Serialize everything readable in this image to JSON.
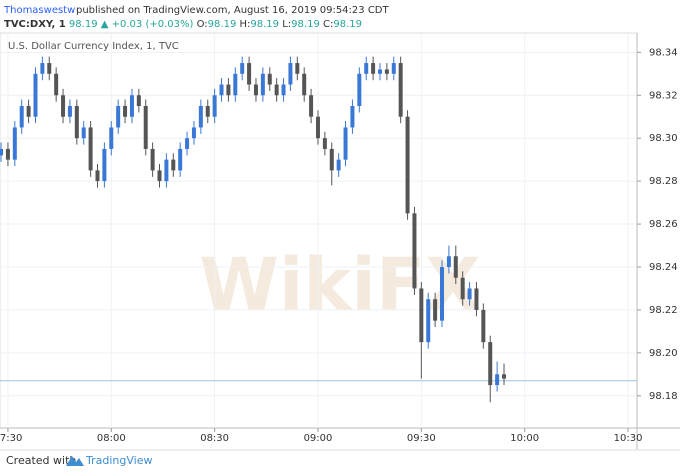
{
  "header": {
    "author": "Thomaswestw",
    "published": "published on TradingView.com, August 16, 2019 09:54:23 CDT",
    "symbol": "TVC:DXY, 1",
    "price": "98.19",
    "change": "▲ +0.03 (+0.03%)",
    "ohlc": [
      {
        "label": "O:",
        "value": "98.19"
      },
      {
        "label": "H:",
        "value": "98.19"
      },
      {
        "label": "L:",
        "value": "98.19"
      },
      {
        "label": "C:",
        "value": "98.19"
      }
    ]
  },
  "watermark": "WikiFX",
  "footer": {
    "text": "Created with",
    "brand": "TradingView"
  },
  "chart_data": {
    "type": "candlestick",
    "title": "U.S. Dollar Currency Index, 1, TVC",
    "up_color": "#3a78d6",
    "down_color": "#555555",
    "price_line": 98.187,
    "price_line_color": "#9fc3df",
    "grid": true,
    "x": [
      448,
      450,
      452,
      454,
      456,
      458,
      460,
      462,
      464,
      466,
      468,
      470,
      472,
      474,
      476,
      478,
      480,
      482,
      484,
      486,
      488,
      490,
      492,
      494,
      496,
      498,
      500,
      502,
      504,
      506,
      508,
      510,
      512,
      514,
      516,
      518,
      520,
      522,
      524,
      526,
      528,
      530,
      532,
      534,
      536,
      538,
      540,
      542,
      544,
      546,
      548,
      550,
      552,
      554,
      556,
      558,
      560,
      562,
      564,
      566,
      568,
      570,
      572,
      574,
      576,
      578,
      580,
      582,
      584,
      586,
      588,
      590,
      592,
      594
    ],
    "open": [
      98.292,
      98.295,
      98.29,
      98.305,
      98.315,
      98.31,
      98.33,
      98.335,
      98.33,
      98.32,
      98.31,
      98.315,
      98.3,
      98.305,
      98.285,
      98.28,
      98.295,
      98.305,
      98.315,
      98.31,
      98.32,
      98.315,
      98.295,
      98.285,
      98.28,
      98.29,
      98.285,
      98.295,
      98.3,
      98.305,
      98.315,
      98.31,
      98.32,
      98.325,
      98.32,
      98.33,
      98.335,
      98.325,
      98.32,
      98.33,
      98.325,
      98.32,
      98.325,
      98.335,
      98.33,
      98.32,
      98.31,
      98.3,
      98.295,
      98.285,
      98.29,
      98.305,
      98.315,
      98.33,
      98.335,
      98.33,
      98.332,
      98.33,
      98.335,
      98.31,
      98.265,
      98.23,
      98.205,
      98.225,
      98.215,
      98.24,
      98.245,
      98.235,
      98.225,
      98.23,
      98.22,
      98.205,
      98.185,
      98.19
    ],
    "high": [
      98.298,
      98.298,
      98.308,
      98.318,
      98.318,
      98.333,
      98.338,
      98.338,
      98.333,
      98.323,
      98.318,
      98.318,
      98.308,
      98.308,
      98.288,
      98.298,
      98.308,
      98.318,
      98.318,
      98.323,
      98.323,
      98.318,
      98.298,
      98.288,
      98.293,
      98.293,
      98.298,
      98.303,
      98.308,
      98.318,
      98.318,
      98.323,
      98.328,
      98.328,
      98.333,
      98.338,
      98.338,
      98.328,
      98.333,
      98.333,
      98.328,
      98.328,
      98.338,
      98.338,
      98.333,
      98.323,
      98.313,
      98.303,
      98.298,
      98.293,
      98.308,
      98.318,
      98.333,
      98.338,
      98.338,
      98.335,
      98.335,
      98.338,
      98.338,
      98.313,
      98.268,
      98.233,
      98.228,
      98.228,
      98.243,
      98.25,
      98.25,
      98.238,
      98.233,
      98.233,
      98.223,
      98.208,
      98.196,
      98.195
    ],
    "low": [
      98.289,
      98.287,
      98.287,
      98.302,
      98.307,
      98.307,
      98.327,
      98.327,
      98.317,
      98.307,
      98.307,
      98.297,
      98.297,
      98.282,
      98.277,
      98.277,
      98.292,
      98.302,
      98.307,
      98.307,
      98.312,
      98.292,
      98.282,
      98.277,
      98.277,
      98.282,
      98.282,
      98.292,
      98.297,
      98.302,
      98.307,
      98.307,
      98.317,
      98.317,
      98.317,
      98.327,
      98.322,
      98.317,
      98.317,
      98.322,
      98.317,
      98.317,
      98.322,
      98.327,
      98.317,
      98.307,
      98.297,
      98.292,
      98.278,
      98.282,
      98.287,
      98.302,
      98.312,
      98.327,
      98.327,
      98.327,
      98.327,
      98.327,
      98.307,
      98.262,
      98.227,
      98.188,
      98.202,
      98.212,
      98.212,
      98.237,
      98.232,
      98.222,
      98.222,
      98.217,
      98.202,
      98.177,
      98.182,
      98.185
    ],
    "close": [
      98.295,
      98.29,
      98.305,
      98.315,
      98.31,
      98.33,
      98.335,
      98.33,
      98.32,
      98.31,
      98.315,
      98.3,
      98.305,
      98.285,
      98.28,
      98.295,
      98.305,
      98.315,
      98.31,
      98.32,
      98.315,
      98.295,
      98.285,
      98.28,
      98.29,
      98.285,
      98.295,
      98.3,
      98.305,
      98.315,
      98.31,
      98.32,
      98.325,
      98.32,
      98.33,
      98.335,
      98.325,
      98.32,
      98.33,
      98.325,
      98.32,
      98.325,
      98.335,
      98.33,
      98.32,
      98.31,
      98.3,
      98.295,
      98.285,
      98.29,
      98.305,
      98.315,
      98.33,
      98.335,
      98.33,
      98.332,
      98.33,
      98.335,
      98.31,
      98.265,
      98.23,
      98.205,
      98.225,
      98.215,
      98.24,
      98.245,
      98.235,
      98.225,
      98.23,
      98.22,
      98.205,
      98.185,
      98.19,
      98.188
    ],
    "xlim": [
      447.7,
      632.6
    ],
    "xticks": [
      {
        "value": 450,
        "label": "07:30"
      },
      {
        "value": 480,
        "label": "08:00"
      },
      {
        "value": 510,
        "label": "08:30"
      },
      {
        "value": 540,
        "label": "09:00"
      },
      {
        "value": 570,
        "label": "09:30"
      },
      {
        "value": 600,
        "label": "10:00"
      },
      {
        "value": 630,
        "label": "10:30"
      }
    ],
    "ylim": [
      98.165,
      98.349
    ],
    "yticks": [
      98.18,
      {
        "value": 98.2,
        "label": "98.20"
      },
      98.22,
      98.24,
      98.26,
      98.28,
      {
        "value": 98.3,
        "label": "98.30"
      },
      98.32,
      98.34
    ]
  }
}
